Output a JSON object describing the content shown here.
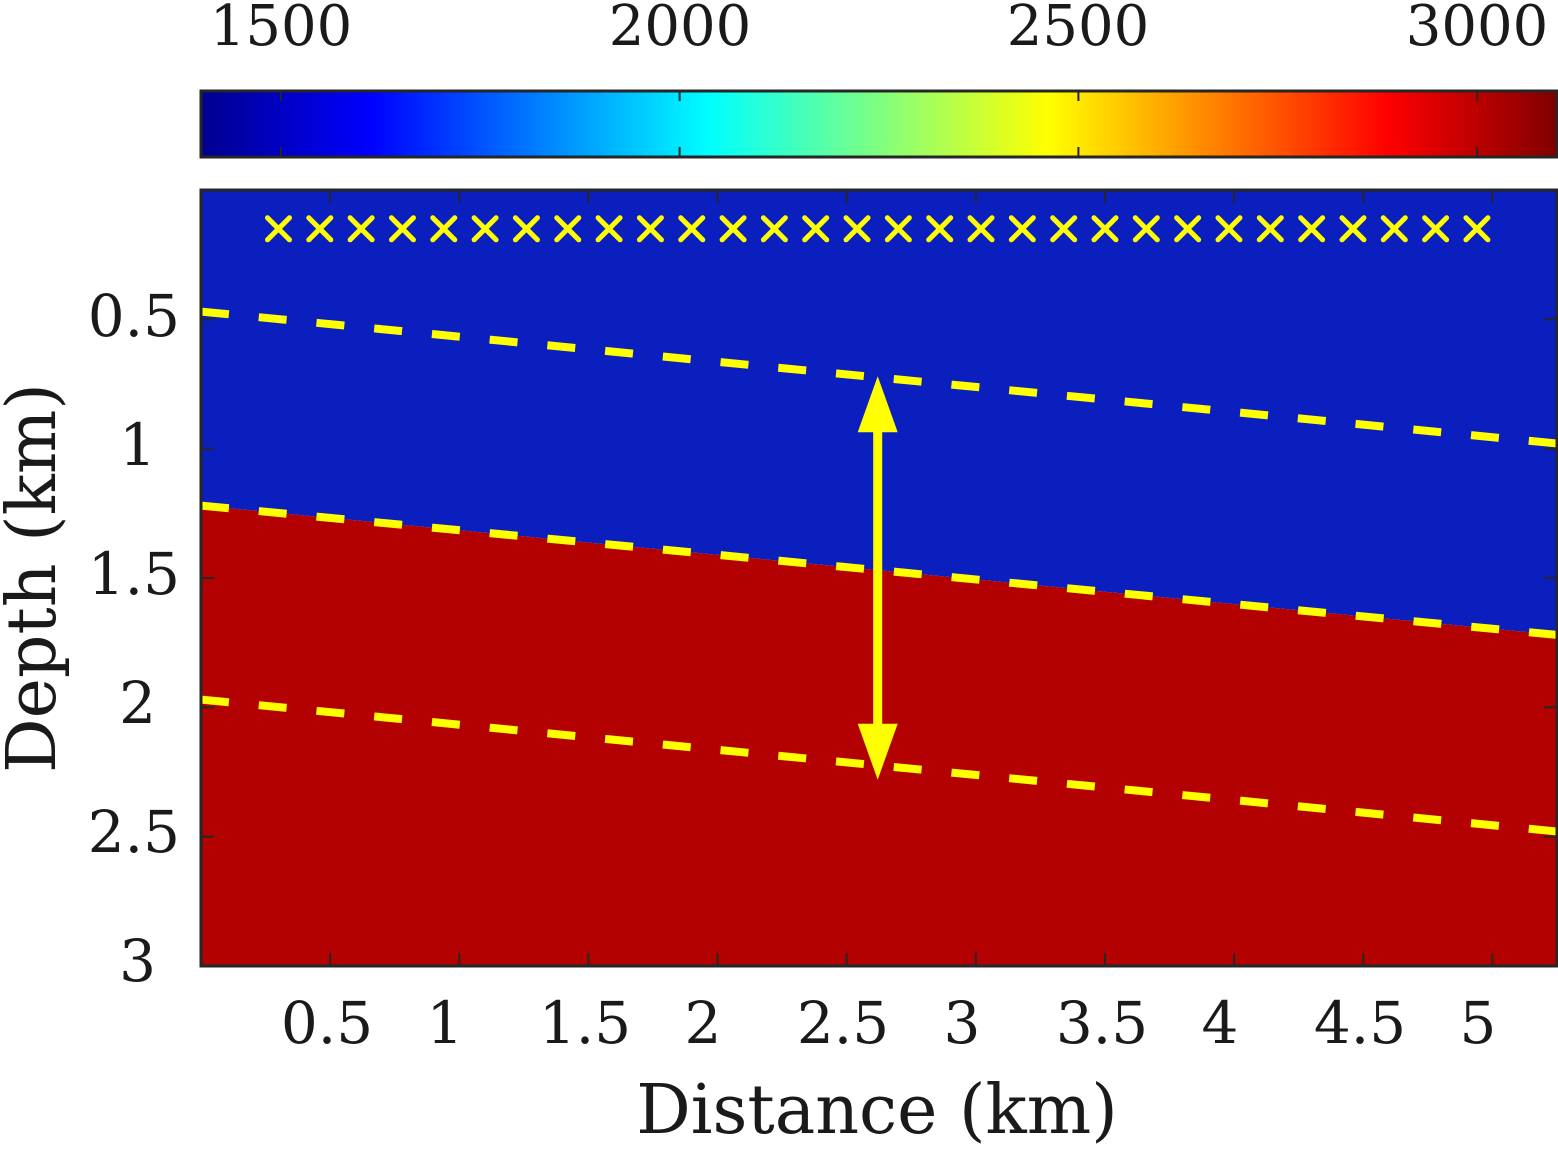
{
  "chart_data": {
    "type": "heatmap",
    "title": "",
    "xlabel": "Distance (km)",
    "ylabel": "Depth (km)",
    "xlim": [
      0,
      5.25
    ],
    "ylim": [
      0,
      3
    ],
    "y_reversed": true,
    "grid": false,
    "x_ticks": [
      0.5,
      1,
      1.5,
      2,
      2.5,
      3,
      3.5,
      4,
      4.5,
      5
    ],
    "x_tick_labels": [
      "0.5",
      "1",
      "1.5",
      "2",
      "2.5",
      "3",
      "3.5",
      "4",
      "4.5",
      "5"
    ],
    "y_ticks": [
      0.5,
      1,
      1.5,
      2,
      2.5,
      3
    ],
    "y_tick_labels": [
      "0.5",
      "1",
      "1.5",
      "2",
      "2.5",
      "3"
    ],
    "colorbar": {
      "location": "top",
      "colormap": "jet",
      "range": [
        1400,
        3100
      ],
      "ticks": [
        1500,
        2000,
        2500,
        3000
      ],
      "tick_labels": [
        "1500",
        "2000",
        "2500",
        "3000"
      ]
    },
    "layers": [
      {
        "name": "upper layer",
        "velocity": 1500,
        "color": "#0a1fbd"
      },
      {
        "name": "lower layer",
        "velocity": 3000,
        "color": "#b30000"
      }
    ],
    "interface": {
      "x": [
        0,
        5.25
      ],
      "depth": [
        1.22,
        1.72
      ]
    },
    "dashed_lines": [
      {
        "name": "upper bound",
        "x": [
          0,
          5.25
        ],
        "depth": [
          0.47,
          0.98
        ],
        "color": "#ffff00"
      },
      {
        "name": "interface",
        "x": [
          0,
          5.25
        ],
        "depth": [
          1.22,
          1.72
        ],
        "color": "#ffff00"
      },
      {
        "name": "lower bound",
        "x": [
          0,
          5.25
        ],
        "depth": [
          1.97,
          2.48
        ],
        "color": "#ffff00"
      }
    ],
    "receivers": {
      "depth": 0.15,
      "x": [
        0.3,
        0.46,
        0.62,
        0.78,
        0.94,
        1.1,
        1.26,
        1.42,
        1.58,
        1.74,
        1.9,
        2.06,
        2.22,
        2.38,
        2.54,
        2.7,
        2.86,
        3.02,
        3.18,
        3.34,
        3.5,
        3.66,
        3.82,
        3.98,
        4.14,
        4.3,
        4.46,
        4.62,
        4.78,
        4.94
      ],
      "marker": "x",
      "color": "#ffff00"
    },
    "arrow": {
      "x": 2.62,
      "depth_start": 0.72,
      "depth_end": 2.28,
      "double_headed": true,
      "color": "#ffff00"
    }
  }
}
